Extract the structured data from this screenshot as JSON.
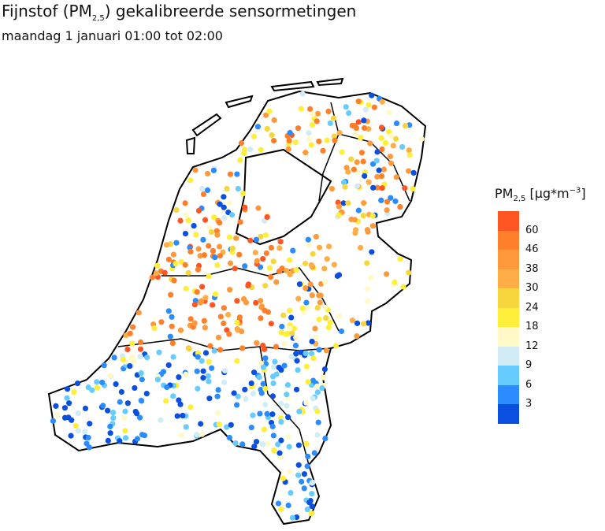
{
  "title": {
    "prefix": "Fijnstof (PM",
    "sub": "2,5",
    "suffix": ") gekalibreerde sensormetingen"
  },
  "subtitle": "maandag 1 januari 01:00 tot 02:00",
  "colorbar": {
    "title_prefix": "PM",
    "title_sub": "2,5",
    "title_unit": " [µg*m",
    "title_sup": "−3",
    "title_end": "]",
    "labels": [
      "60",
      "46",
      "38",
      "30",
      "24",
      "18",
      "12",
      "9",
      "6",
      "3"
    ],
    "colors": [
      "#ff5522",
      "#ff7f2a",
      "#ff9a3c",
      "#ffad47",
      "#f5d63c",
      "#ffee3a",
      "#fff9c8",
      "#d2ecf5",
      "#66ccff",
      "#2a8cff",
      "#0a4fe0"
    ]
  }
}
